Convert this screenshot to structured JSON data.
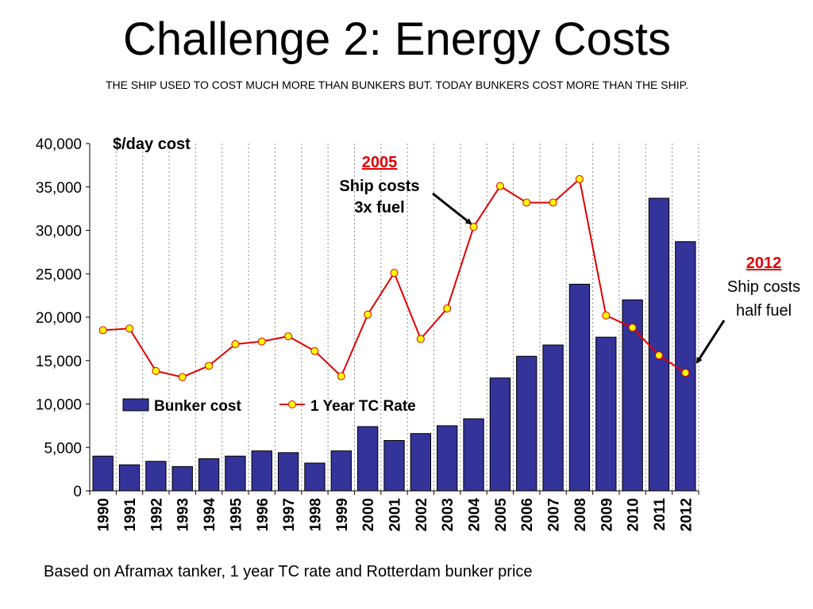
{
  "title": "Challenge 2: Energy Costs",
  "subtitle": "THE SHIP USED TO COST MUCH MORE THAN BUNKERS BUT. TODAY BUNKERS COST MORE THAN THE SHIP.",
  "footnote": "Based on Aframax tanker, 1 year TC rate and Rotterdam bunker price",
  "chart_data": {
    "type": "bar",
    "title": "",
    "ylabel": "$/day cost",
    "xlabel": "",
    "ylim": [
      0,
      40000
    ],
    "yticks": [
      "0",
      "5,000",
      "10,000",
      "15,000",
      "20,000",
      "25,000",
      "30,000",
      "35,000",
      "40,000"
    ],
    "grid": "vertical dotted lines",
    "legend_position": "middle-left",
    "categories": [
      "1990",
      "1991",
      "1992",
      "1993",
      "1994",
      "1995",
      "1996",
      "1997",
      "1998",
      "1999",
      "2000",
      "2001",
      "2002",
      "2003",
      "2004",
      "2005",
      "2006",
      "2007",
      "2008",
      "2009",
      "2010",
      "2011",
      "2012"
    ],
    "series": [
      {
        "name": "Bunker cost",
        "type": "bar",
        "color": "#333399",
        "values": [
          4000,
          3000,
          3400,
          2800,
          3700,
          4000,
          4600,
          4400,
          3200,
          4600,
          7400,
          5800,
          6600,
          7500,
          8300,
          13000,
          15500,
          16800,
          23800,
          17700,
          22000,
          33700,
          28700
        ]
      },
      {
        "name": "1 Year TC Rate",
        "type": "line",
        "color": "#e00000",
        "marker_color": "#ffff00",
        "values": [
          18500,
          18700,
          13800,
          13100,
          14400,
          16900,
          17200,
          17800,
          16100,
          13200,
          20300,
          25100,
          17500,
          21000,
          30400,
          35100,
          33200,
          33200,
          35900,
          20200,
          18800,
          15600,
          13600
        ]
      }
    ],
    "annotations": [
      {
        "id": "a2005",
        "year": "2005",
        "lines": [
          "Ship costs",
          "3x  fuel"
        ]
      },
      {
        "id": "a2012",
        "year": "2012",
        "lines": [
          "Ship costs",
          "half fuel"
        ]
      }
    ]
  }
}
